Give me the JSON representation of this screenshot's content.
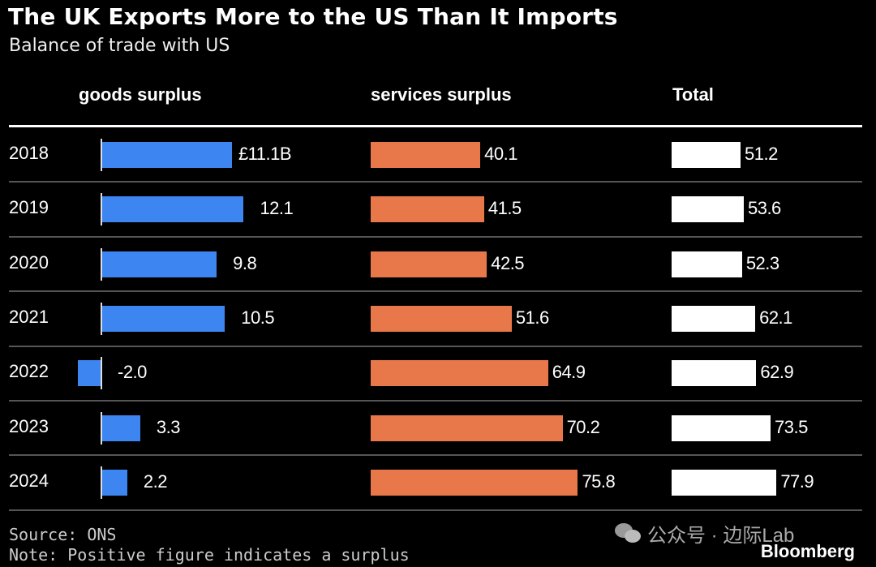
{
  "header": {
    "title": "The UK Exports More to the US Than It Imports",
    "subtitle": "Balance of trade with US"
  },
  "colors": {
    "goods": "#3d85f0",
    "services": "#e8784a",
    "total": "#ffffff",
    "background": "#000000"
  },
  "chart_data": {
    "type": "bar",
    "title": "The UK Exports More to the US Than It Imports",
    "subtitle": "Balance of trade with US",
    "unit": "£B",
    "categories": [
      "2018",
      "2019",
      "2020",
      "2021",
      "2022",
      "2023",
      "2024"
    ],
    "series": [
      {
        "name": "goods surplus",
        "values": [
          11.1,
          12.1,
          9.8,
          10.5,
          -2.0,
          3.3,
          2.2
        ],
        "labels": [
          "£11.1B",
          "12.1",
          "9.8",
          "10.5",
          "-2.0",
          "3.3",
          "2.2"
        ]
      },
      {
        "name": "services surplus",
        "values": [
          40.1,
          41.5,
          42.5,
          51.6,
          64.9,
          70.2,
          75.8
        ],
        "labels": [
          "40.1",
          "41.5",
          "42.5",
          "51.6",
          "64.9",
          "70.2",
          "75.8"
        ]
      },
      {
        "name": "Total",
        "values": [
          51.2,
          53.6,
          52.3,
          62.1,
          62.9,
          73.5,
          77.9
        ],
        "labels": [
          "51.2",
          "53.6",
          "52.3",
          "62.1",
          "62.9",
          "73.5",
          "77.9"
        ]
      }
    ],
    "orientation": "horizontal",
    "grid": false,
    "legend": "column-headers"
  },
  "footer": {
    "source": "Source: ONS",
    "note": "Note: Positive figure indicates a surplus",
    "brand": "Bloomberg",
    "watermark": "公众号 · 边际Lab"
  }
}
